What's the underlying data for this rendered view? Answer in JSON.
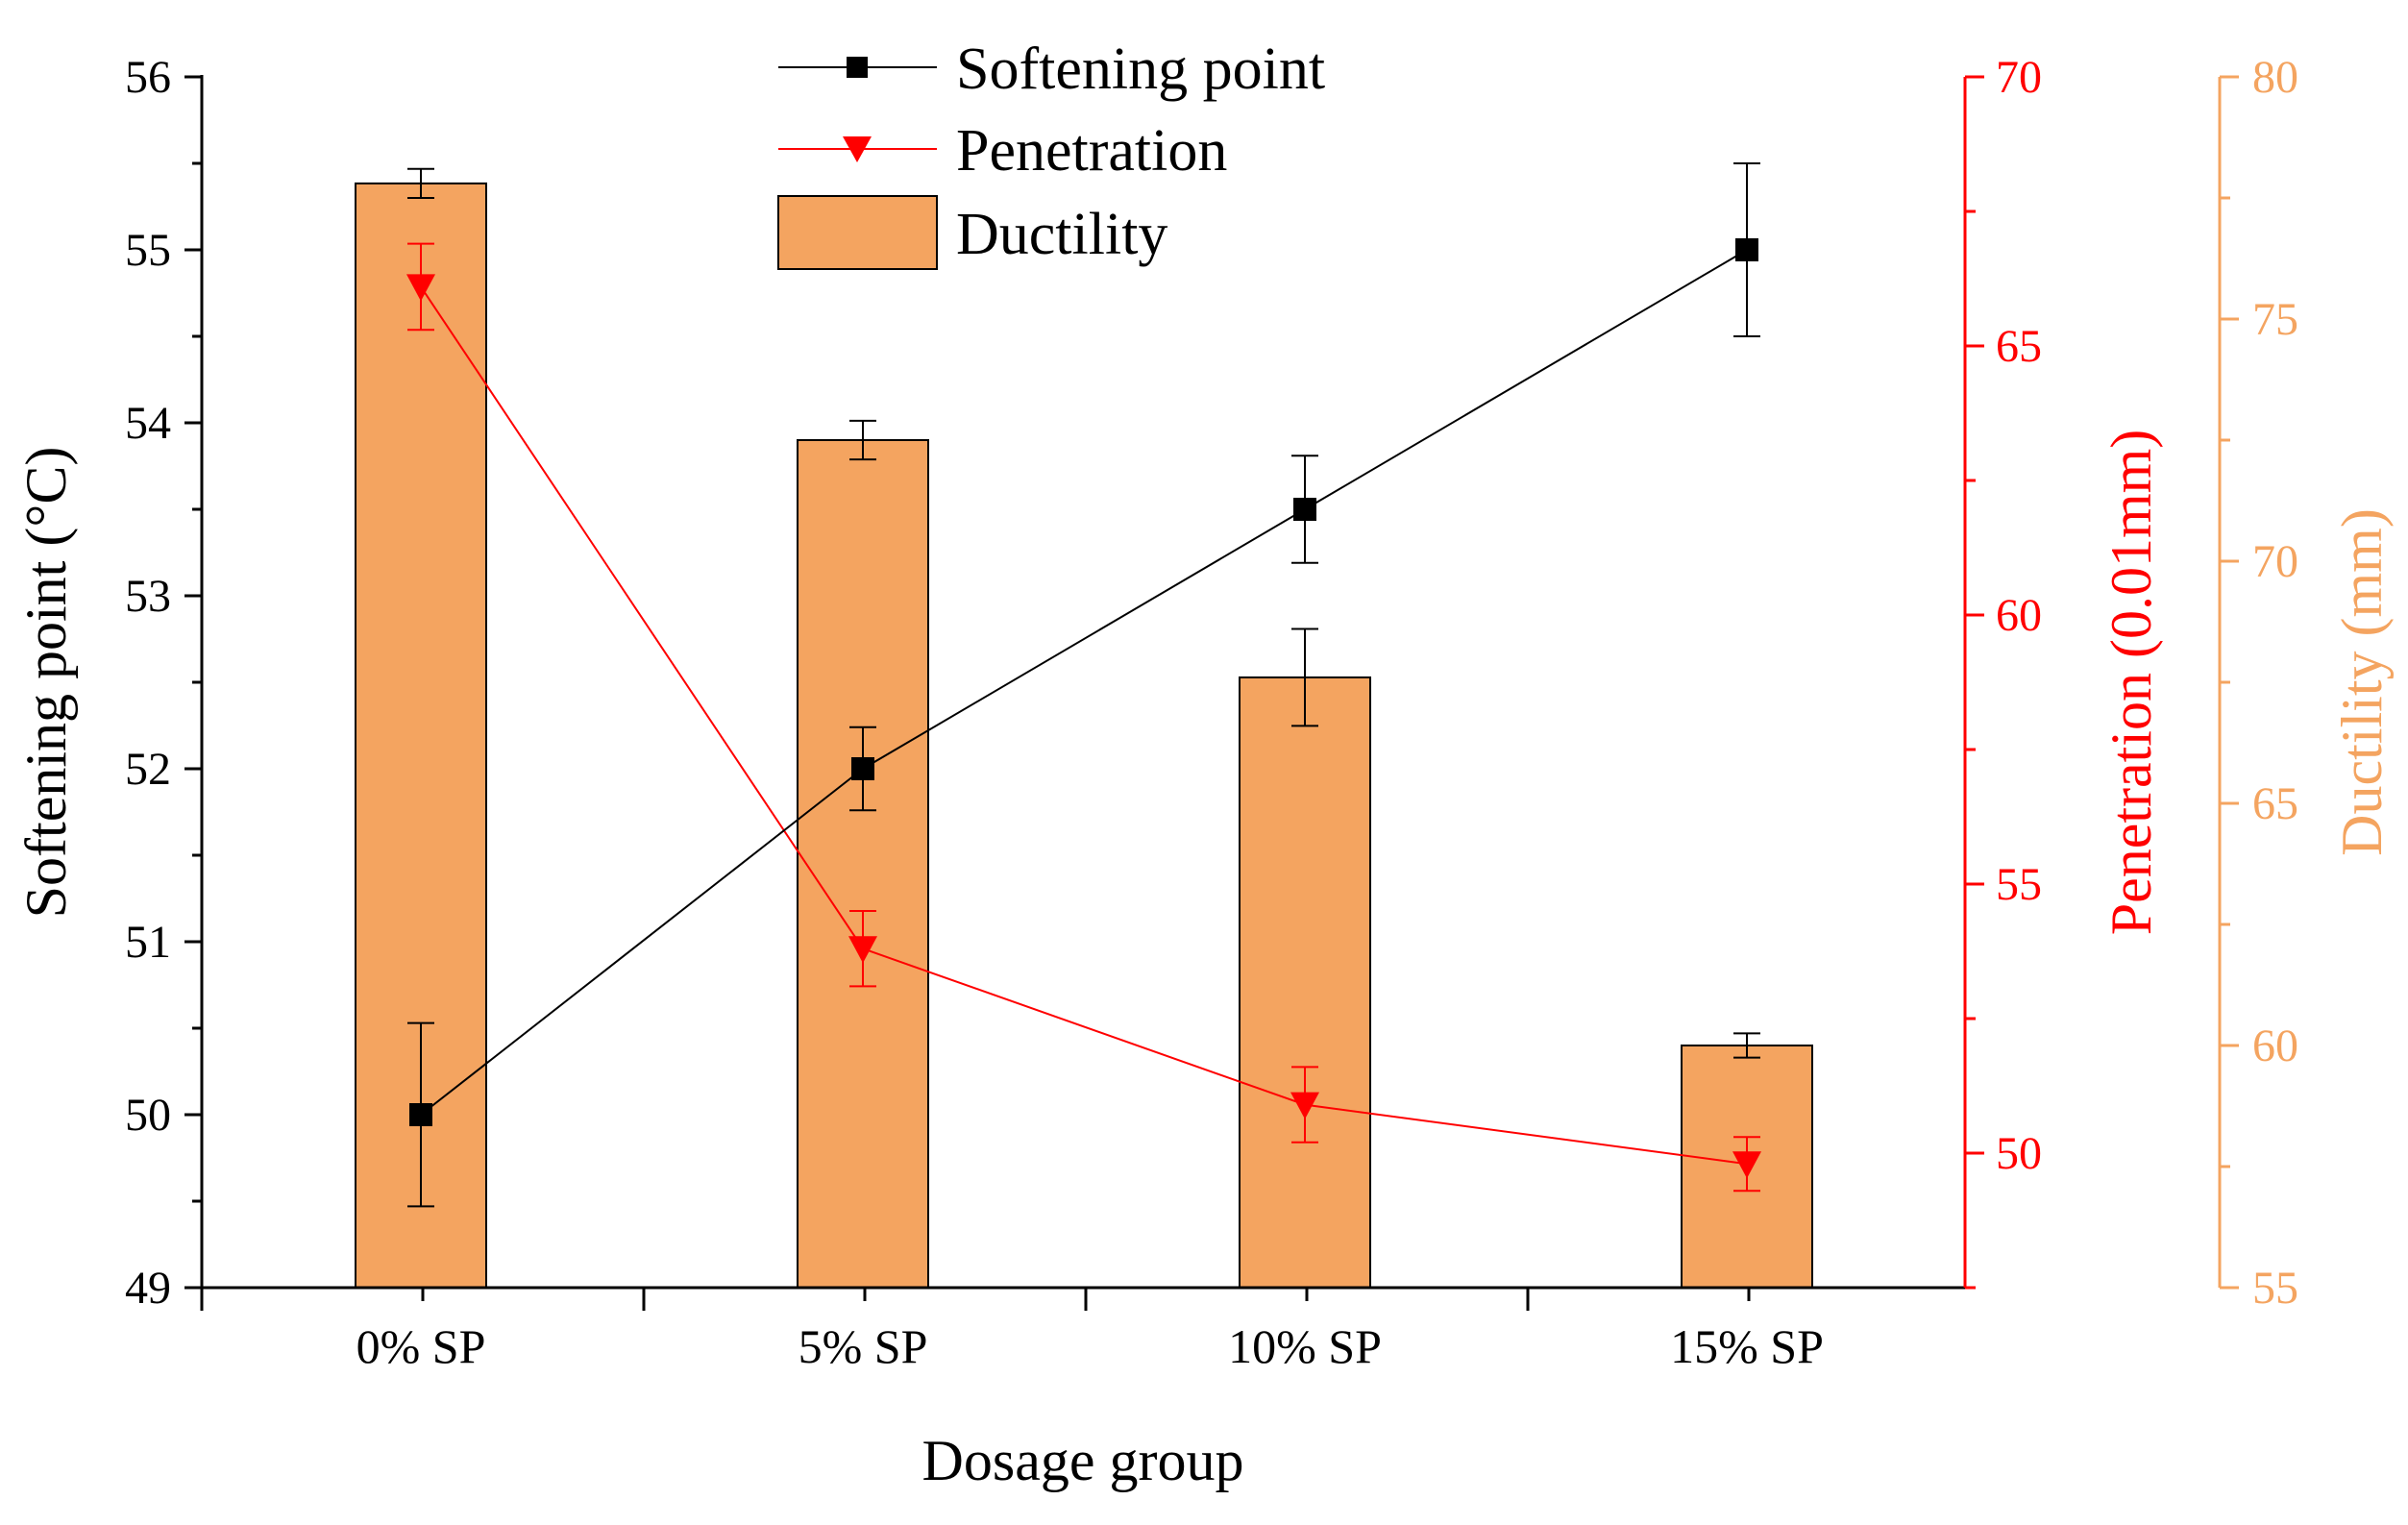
{
  "chart_data": {
    "type": "bar+line",
    "xlabel": "Dosage group",
    "categories": [
      "0% SP",
      "5% SP",
      "10% SP",
      "15% SP"
    ],
    "axes": {
      "left": {
        "label": "Softening point (°C)",
        "ylim": [
          49,
          56
        ],
        "ticks": [
          "49",
          "50",
          "51",
          "52",
          "53",
          "54",
          "55",
          "56"
        ],
        "color": "#000000"
      },
      "right1": {
        "label": "Penetration (0.01mm)",
        "ylim": [
          47.5,
          70
        ],
        "ticks": [
          "50",
          "55",
          "60",
          "65",
          "70"
        ],
        "color": "#ff0000"
      },
      "right2": {
        "label": "Ductility (mm)",
        "ylim": [
          55,
          80
        ],
        "ticks": [
          "55",
          "60",
          "65",
          "70",
          "75",
          "80"
        ],
        "color": "#f4a460"
      }
    },
    "series": [
      {
        "name": "Softening point",
        "axis": "left",
        "kind": "line",
        "marker": "square",
        "color": "#000000",
        "values": [
          50.0,
          52.0,
          53.5,
          55.0
        ],
        "errors": [
          0.53,
          0.24,
          0.31,
          0.5
        ]
      },
      {
        "name": "Penetration",
        "axis": "right1",
        "kind": "line",
        "marker": "triangle-down",
        "color": "#ff0000",
        "values": [
          66.1,
          53.8,
          50.9,
          49.8
        ],
        "errors": [
          0.8,
          0.7,
          0.7,
          0.5
        ]
      },
      {
        "name": "Ductility",
        "axis": "right2",
        "kind": "bar",
        "color": "#f4a460",
        "values": [
          77.8,
          72.5,
          67.6,
          60.0
        ],
        "errors": [
          0.3,
          0.4,
          1.0,
          0.25
        ]
      }
    ],
    "legend": {
      "placement": "top-center"
    }
  }
}
